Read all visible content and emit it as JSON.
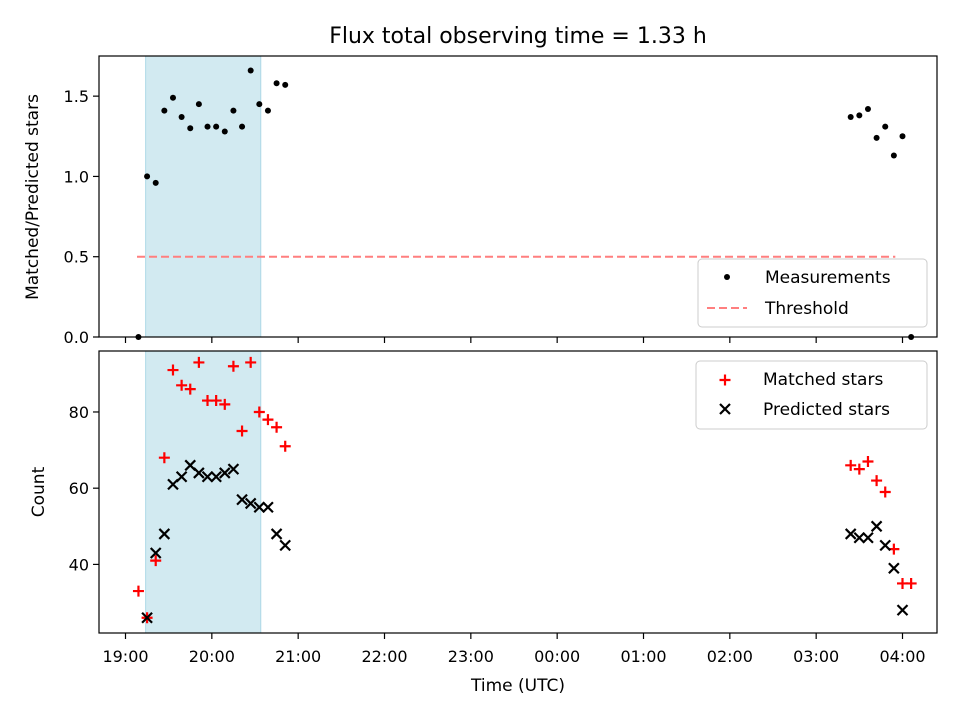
{
  "figure": {
    "title": "Flux total observing time = 1.33 h",
    "xlabel": "Time (UTC)",
    "colors": {
      "measurement": "#000000",
      "threshold": "#ff7f7f",
      "matched": "#ff0000",
      "predicted": "#000000",
      "highlight": "#add8e6"
    }
  },
  "chart_data": [
    {
      "type": "scatter",
      "ylabel": "Matched/Predicted stars",
      "ylim": [
        0,
        1.75
      ],
      "yticks": [
        0.0,
        0.5,
        1.0,
        1.5
      ],
      "ytick_labels": [
        "0.0",
        "0.5",
        "1.0",
        "1.5"
      ],
      "xlim": [
        "19:00",
        "04:00"
      ],
      "x_axis": "time of night, 19:00 to 04:00 (next day)",
      "legend_position": "lower right",
      "highlight_span": [
        "19:14",
        "20:34"
      ],
      "threshold": {
        "name": "Threshold",
        "value": 0.5,
        "x_range": [
          "19:08",
          "03:55"
        ]
      },
      "series": [
        {
          "name": "Measurements",
          "points": [
            [
              "19:09",
              0.0
            ],
            [
              "19:15",
              1.0
            ],
            [
              "19:21",
              0.96
            ],
            [
              "19:27",
              1.41
            ],
            [
              "19:33",
              1.49
            ],
            [
              "19:39",
              1.37
            ],
            [
              "19:45",
              1.3
            ],
            [
              "19:51",
              1.45
            ],
            [
              "19:57",
              1.31
            ],
            [
              "20:03",
              1.31
            ],
            [
              "20:09",
              1.28
            ],
            [
              "20:15",
              1.41
            ],
            [
              "20:21",
              1.31
            ],
            [
              "20:27",
              1.66
            ],
            [
              "20:33",
              1.45
            ],
            [
              "20:39",
              1.41
            ],
            [
              "20:45",
              1.58
            ],
            [
              "20:51",
              1.57
            ],
            [
              "03:24",
              1.37
            ],
            [
              "03:30",
              1.38
            ],
            [
              "03:36",
              1.42
            ],
            [
              "03:42",
              1.24
            ],
            [
              "03:48",
              1.31
            ],
            [
              "03:54",
              1.13
            ],
            [
              "04:00",
              1.25
            ],
            [
              "04:06",
              0.0
            ]
          ]
        }
      ]
    },
    {
      "type": "scatter",
      "ylabel": "Count",
      "ylim": [
        22,
        96
      ],
      "yticks": [
        40,
        60,
        80
      ],
      "ytick_labels": [
        "40",
        "60",
        "80"
      ],
      "xlim": [
        "19:00",
        "04:00"
      ],
      "xtick_labels": [
        "19:00",
        "20:00",
        "21:00",
        "22:00",
        "23:00",
        "00:00",
        "01:00",
        "02:00",
        "03:00",
        "04:00"
      ],
      "legend_position": "upper right",
      "highlight_span": [
        "19:14",
        "20:34"
      ],
      "series": [
        {
          "name": "Matched stars",
          "points": [
            [
              "19:09",
              33
            ],
            [
              "19:15",
              26
            ],
            [
              "19:21",
              41
            ],
            [
              "19:27",
              68
            ],
            [
              "19:33",
              91
            ],
            [
              "19:39",
              87
            ],
            [
              "19:45",
              86
            ],
            [
              "19:51",
              93
            ],
            [
              "19:57",
              83
            ],
            [
              "20:03",
              83
            ],
            [
              "20:09",
              82
            ],
            [
              "20:15",
              92
            ],
            [
              "20:21",
              75
            ],
            [
              "20:27",
              93
            ],
            [
              "20:33",
              80
            ],
            [
              "20:39",
              78
            ],
            [
              "20:45",
              76
            ],
            [
              "20:51",
              71
            ],
            [
              "03:24",
              66
            ],
            [
              "03:30",
              65
            ],
            [
              "03:36",
              67
            ],
            [
              "03:42",
              62
            ],
            [
              "03:48",
              59
            ],
            [
              "03:54",
              44
            ],
            [
              "04:00",
              35
            ],
            [
              "04:06",
              35
            ]
          ]
        },
        {
          "name": "Predicted stars",
          "points": [
            [
              "19:15",
              26
            ],
            [
              "19:21",
              43
            ],
            [
              "19:27",
              48
            ],
            [
              "19:33",
              61
            ],
            [
              "19:39",
              63
            ],
            [
              "19:45",
              66
            ],
            [
              "19:51",
              64
            ],
            [
              "19:57",
              63
            ],
            [
              "20:03",
              63
            ],
            [
              "20:09",
              64
            ],
            [
              "20:15",
              65
            ],
            [
              "20:21",
              57
            ],
            [
              "20:27",
              56
            ],
            [
              "20:33",
              55
            ],
            [
              "20:39",
              55
            ],
            [
              "20:45",
              48
            ],
            [
              "20:51",
              45
            ],
            [
              "03:24",
              48
            ],
            [
              "03:30",
              47
            ],
            [
              "03:36",
              47
            ],
            [
              "03:42",
              50
            ],
            [
              "03:48",
              45
            ],
            [
              "03:54",
              39
            ],
            [
              "04:00",
              28
            ]
          ]
        }
      ]
    }
  ]
}
